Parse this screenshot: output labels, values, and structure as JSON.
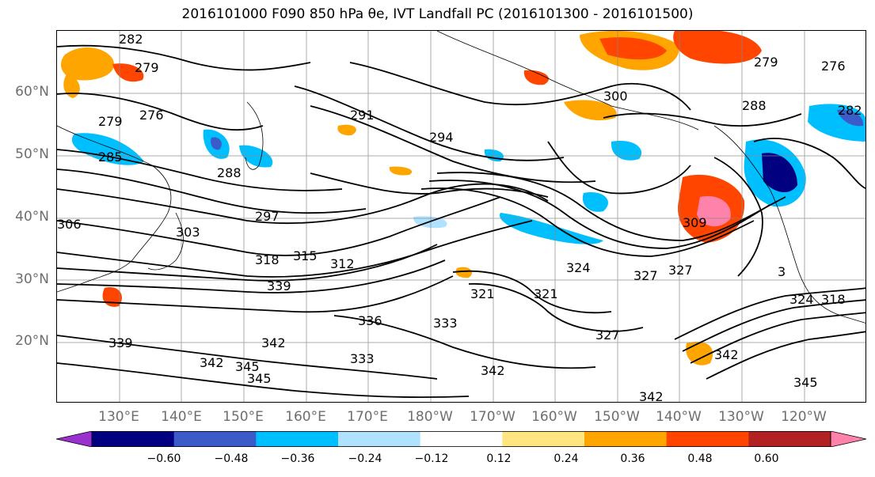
{
  "title": "2016101000 F090 850 hPa θe, IVT Landfall PC (2016101300 - 2016101500)",
  "lat_labels": [
    "60°N",
    "50°N",
    "40°N",
    "30°N",
    "20°N"
  ],
  "lon_labels": [
    "130°E",
    "140°E",
    "150°E",
    "160°E",
    "170°E",
    "180°W",
    "170°W",
    "160°W",
    "150°W",
    "140°W",
    "130°W",
    "120°W"
  ],
  "contour_labels": [
    "282",
    "279",
    "279",
    "276",
    "285",
    "288",
    "291",
    "294",
    "297",
    "300",
    "288",
    "282",
    "279",
    "276",
    "306",
    "303",
    "309",
    "318",
    "315",
    "312",
    "324",
    "327",
    "327",
    "339",
    "321",
    "321",
    "333",
    "336",
    "333",
    "342",
    "327",
    "342",
    "342",
    "345",
    "345",
    "342",
    "339",
    "345",
    "342",
    "324",
    "318",
    "3"
  ],
  "colorbar": {
    "ticks": [
      "−0.60",
      "−0.48",
      "−0.36",
      "−0.24",
      "−0.12",
      "0.12",
      "0.24",
      "0.36",
      "0.48",
      "0.60"
    ],
    "colors": [
      "#9b30d0",
      "#000080",
      "#3a5bc8",
      "#00bfff",
      "#b0e2ff",
      "#ffffff",
      "#ffe680",
      "#ffa500",
      "#ff4500",
      "#b22222",
      "#ff82ab"
    ]
  }
}
